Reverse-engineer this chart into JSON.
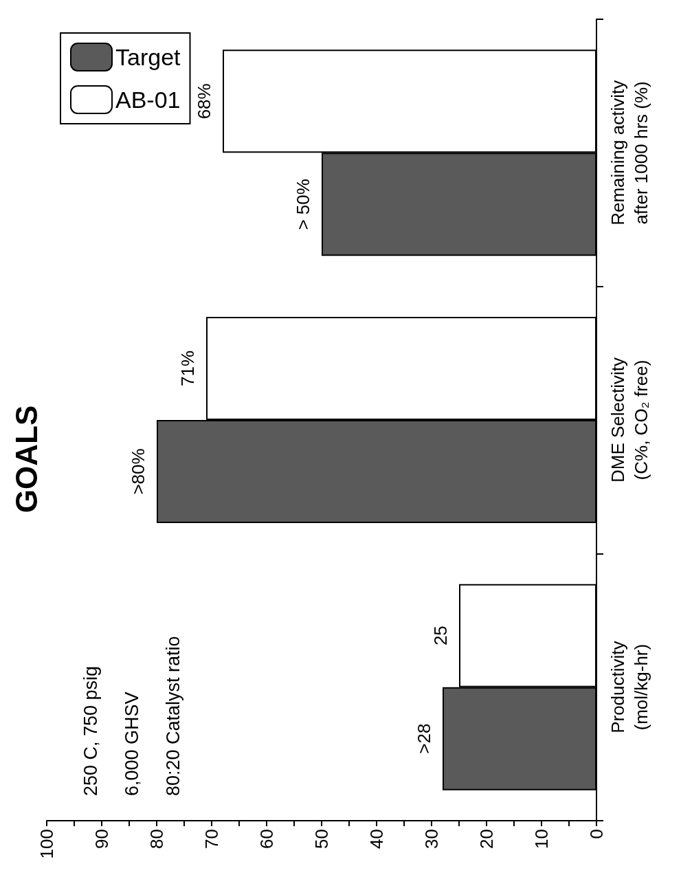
{
  "chart_data": {
    "type": "bar",
    "orientation": "horizontal",
    "title": "GOALS",
    "categories": [
      "Remaining activity\nafter 1000 hrs (%)",
      "DME Selectivity\n(C%, CO₂ free)",
      "Productivity\n(mol/kg-hr)"
    ],
    "series": [
      {
        "name": "Target",
        "color": "#5a5a5a",
        "values": [
          50,
          80,
          28
        ],
        "value_labels": [
          "> 50%",
          ">80%",
          ">28"
        ]
      },
      {
        "name": "AB-01",
        "color": "#ffffff",
        "values": [
          68,
          71,
          25
        ],
        "value_labels": [
          "68%",
          "71%",
          "25"
        ]
      }
    ],
    "xlim": [
      100,
      0
    ],
    "xticks": [
      0,
      10,
      20,
      30,
      40,
      50,
      60,
      70,
      80,
      90,
      100
    ],
    "annotations": [
      "250 C, 750 psig",
      "6,000 GHSV",
      "80:20 Catalyst ratio"
    ],
    "legend": "top left",
    "grid": false
  }
}
